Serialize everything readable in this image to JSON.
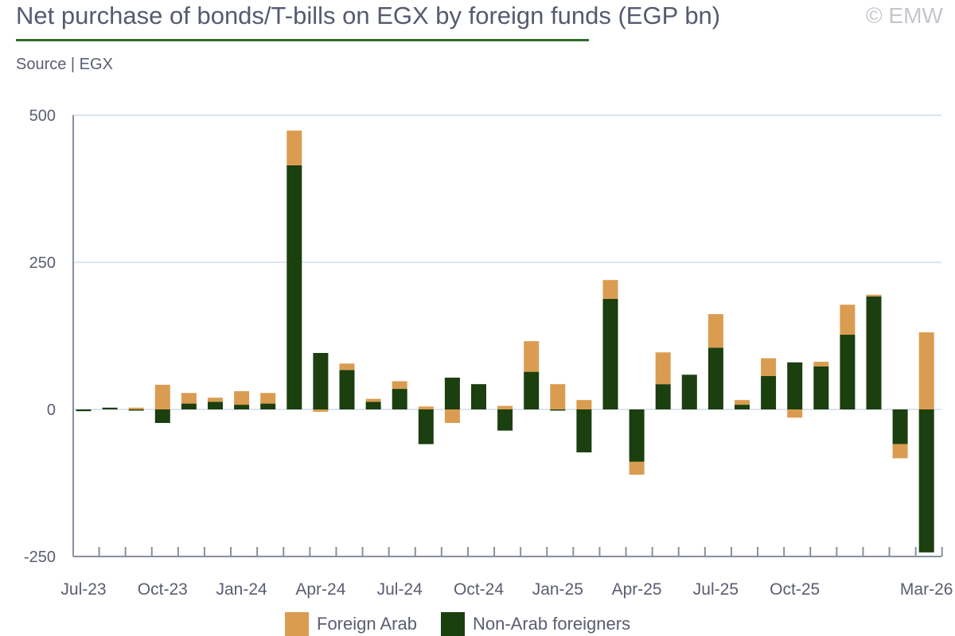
{
  "header": {
    "title": "Net purchase of bonds/T-bills on EGX by foreign funds (EGP bn)",
    "watermark": "© EMW",
    "source": "Source | EGX"
  },
  "colors": {
    "foreign_arab": "#da9c50",
    "non_arab": "#1b3f0f",
    "grid": "#dbe5f0",
    "axis": "#8a8ea0"
  },
  "chart_data": {
    "type": "bar",
    "stacked": true,
    "title": "Net purchase of bonds/T-bills on EGX by foreign funds (EGP bn)",
    "xlabel": "",
    "ylabel": "",
    "ylim": [
      -250,
      500
    ],
    "yticks": [
      "500",
      "250",
      "0",
      "-250"
    ],
    "yticks_values": [
      500,
      250,
      0,
      -250
    ],
    "categories": [
      "Jul-23",
      "Aug-23",
      "Sep-23",
      "Oct-23",
      "Nov-23",
      "Dec-23",
      "Jan-24",
      "Feb-24",
      "Mar-24",
      "Apr-24",
      "May-24",
      "Jun-24",
      "Jul-24",
      "Aug-24",
      "Sep-24",
      "Oct-24",
      "Nov-24",
      "Dec-24",
      "Jan-25",
      "Feb-25",
      "Mar-25",
      "Apr-25",
      "May-25",
      "Jun-25",
      "Jul-25",
      "Aug-25",
      "Sep-25",
      "Oct-25",
      "Nov-25",
      "Dec-25",
      "Jan-26",
      "Feb-26",
      "Mar-26"
    ],
    "xtick_labels": [
      {
        "i": 0,
        "label": "Jul-23"
      },
      {
        "i": 3,
        "label": "Oct-23"
      },
      {
        "i": 6,
        "label": "Jan-24"
      },
      {
        "i": 9,
        "label": "Apr-24"
      },
      {
        "i": 12,
        "label": "Jul-24"
      },
      {
        "i": 15,
        "label": "Oct-24"
      },
      {
        "i": 18,
        "label": "Jan-25"
      },
      {
        "i": 21,
        "label": "Apr-25"
      },
      {
        "i": 24,
        "label": "Jul-25"
      },
      {
        "i": 27,
        "label": "Oct-25"
      },
      {
        "i": 32,
        "label": "Mar-26"
      }
    ],
    "series": [
      {
        "name": "Non-Arab foreigners",
        "values": [
          -3,
          3,
          -2,
          -23,
          10,
          13,
          8,
          10,
          415,
          96,
          67,
          13,
          35,
          -59,
          54,
          43,
          -36,
          64,
          -2,
          -73,
          188,
          -89,
          43,
          59,
          105,
          8,
          57,
          80,
          73,
          127,
          192,
          -59,
          -243
        ]
      },
      {
        "name": "Foreign Arab",
        "values": [
          0,
          0,
          3,
          42,
          18,
          7,
          23,
          18,
          59,
          -4,
          11,
          5,
          13,
          5,
          -23,
          0,
          6,
          52,
          43,
          16,
          32,
          -22,
          54,
          0,
          57,
          8,
          30,
          -14,
          8,
          51,
          3,
          -24,
          131
        ]
      }
    ],
    "grid": true,
    "legend": "bottom"
  }
}
